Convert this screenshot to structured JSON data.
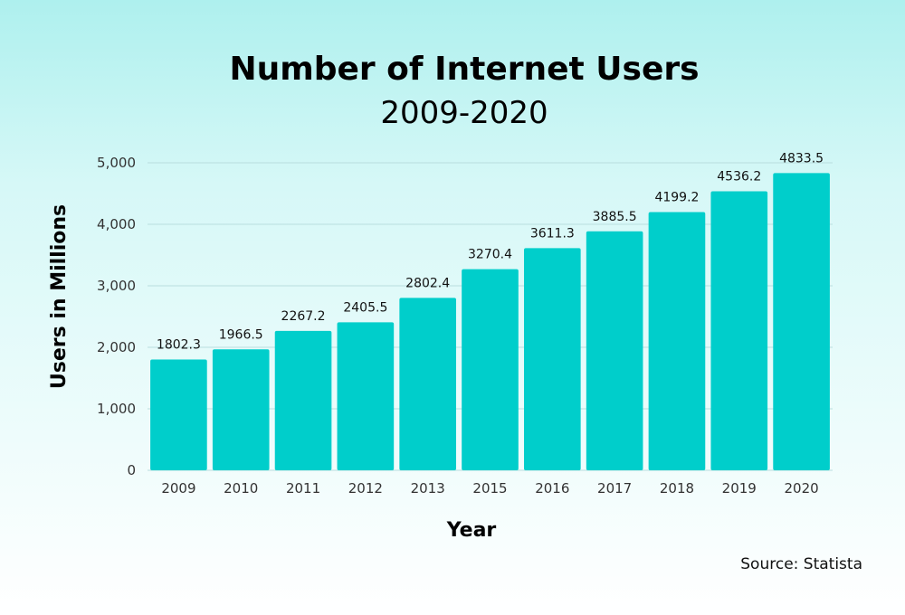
{
  "source": "Source: Statista",
  "colors": {
    "bar": "#00cecb",
    "grid": "#b9dede"
  },
  "chart_data": {
    "type": "bar",
    "title": "Number of Internet Users",
    "subtitle": "2009-2020",
    "xlabel": "Year",
    "ylabel": "Users in Millions",
    "categories": [
      "2009",
      "2010",
      "2011",
      "2012",
      "2013",
      "2015",
      "2016",
      "2017",
      "2018",
      "2019",
      "2020"
    ],
    "values": [
      1802.3,
      1966.5,
      2267.2,
      2405.5,
      2802.4,
      3270.4,
      3611.3,
      3885.5,
      4199.2,
      4536.2,
      4833.5
    ],
    "value_labels": [
      "1802.3",
      "1966.5",
      "2267.2",
      "2405.5",
      "2802.4",
      "3270.4",
      "3611.3",
      "3885.5",
      "4199.2",
      "4536.2",
      "4833.5"
    ],
    "yticks": [
      0,
      1000,
      2000,
      3000,
      4000,
      5000
    ],
    "ytick_labels": [
      "0",
      "1,000",
      "2,000",
      "3,000",
      "4,000",
      "5,000"
    ],
    "ylim": [
      0,
      5000
    ],
    "grid": true,
    "legend": "none"
  }
}
